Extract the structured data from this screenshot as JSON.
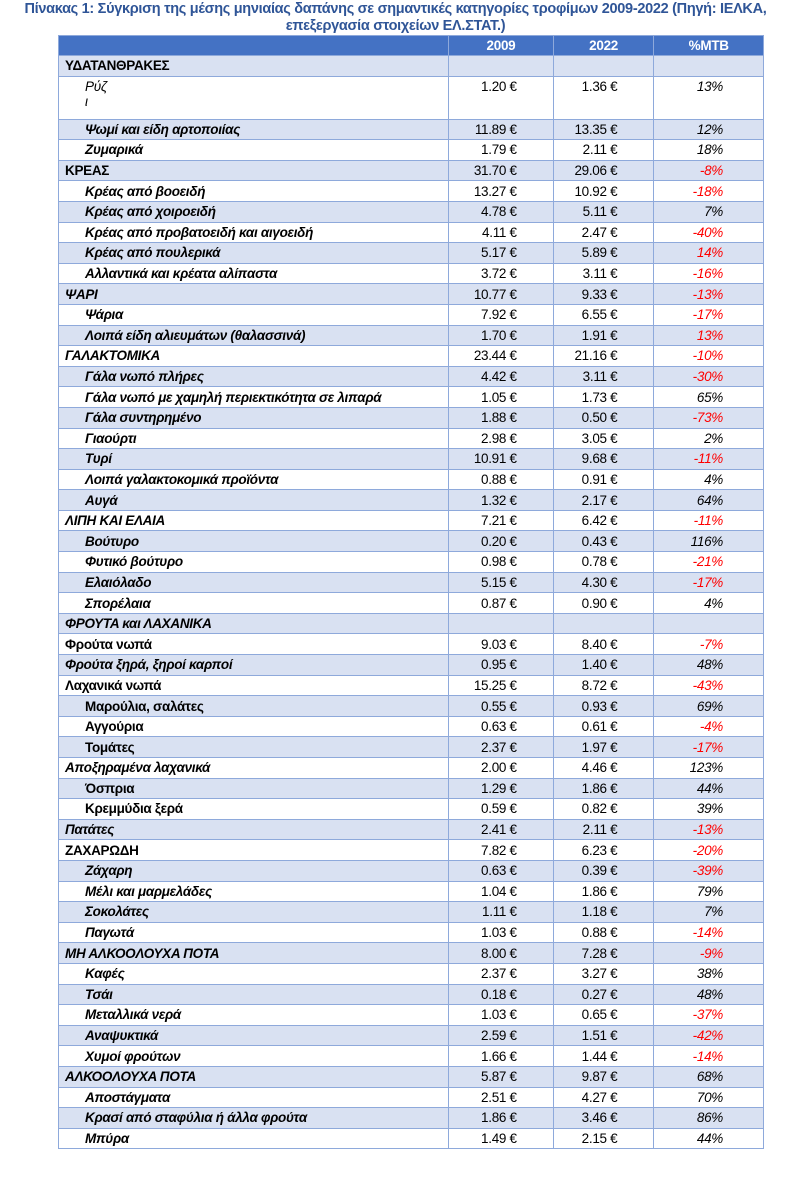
{
  "title": "Πίνακας 1: Σύγκριση της μέσης μηνιαίας δαπάνης σε σημαντικές κατηγορίες τροφίμων 2009-2022 (Πηγή: ΙΕΛΚΑ, επεξεργασία στοιχείων ΕΛ.ΣΤΑΤ.)",
  "colors": {
    "header_bg": "#4472C4",
    "stripe": "#D9E1F2",
    "negative": "#FF0000"
  },
  "headers": [
    "",
    "2009",
    "2022",
    "%ΜΤΒ"
  ],
  "rows": [
    {
      "name": "ΥΔΑΤΑΝΘΡΑΚΕΣ",
      "v2009": "",
      "v2022": "",
      "pct": "",
      "indent": false,
      "italic": false,
      "red": false
    },
    {
      "name": "Ρύζ",
      "extra": "ι",
      "v2009": "1.20 €",
      "v2022": "1.36 €",
      "pct": "13%",
      "indent": true,
      "italic": true,
      "light": true,
      "red": false
    },
    {
      "name": "Ψωμί και είδη αρτοποιίας",
      "v2009": "11.89 €",
      "v2022": "13.35 €",
      "pct": "12%",
      "indent": true,
      "italic": true,
      "red": false
    },
    {
      "name": "Ζυμαρικά",
      "v2009": "1.79 €",
      "v2022": "2.11 €",
      "pct": "18%",
      "indent": true,
      "italic": true,
      "red": false
    },
    {
      "name": "ΚΡΕΑΣ",
      "v2009": "31.70 €",
      "v2022": "29.06 €",
      "pct": "-8%",
      "indent": false,
      "italic": false,
      "red": true
    },
    {
      "name": "Κρέας από βοοειδή",
      "v2009": "13.27 €",
      "v2022": "10.92 €",
      "pct": "-18%",
      "indent": true,
      "italic": true,
      "red": true
    },
    {
      "name": "Κρέας από χοιροειδή",
      "v2009": "4.78 €",
      "v2022": "5.11 €",
      "pct": "7%",
      "indent": true,
      "italic": true,
      "red": false
    },
    {
      "name": "Κρέας από προβατοειδή και αιγοειδή",
      "v2009": "4.11 €",
      "v2022": "2.47 €",
      "pct": "-40%",
      "indent": true,
      "italic": true,
      "red": true
    },
    {
      "name": "Κρέας από πουλερικά",
      "v2009": "5.17 €",
      "v2022": "5.89 €",
      "pct": "14%",
      "indent": true,
      "italic": true,
      "red": true
    },
    {
      "name": "Αλλαντικά και κρέατα αλίπαστα",
      "v2009": "3.72 €",
      "v2022": "3.11 €",
      "pct": "-16%",
      "indent": true,
      "italic": true,
      "red": true
    },
    {
      "name": "ΨΑΡΙ",
      "v2009": "10.77 €",
      "v2022": "9.33 €",
      "pct": "-13%",
      "indent": false,
      "italic": true,
      "red": true
    },
    {
      "name": "Ψάρια",
      "v2009": "7.92 €",
      "v2022": "6.55 €",
      "pct": "-17%",
      "indent": true,
      "italic": true,
      "red": true
    },
    {
      "name": "Λοιπά είδη αλιευμάτων (θαλασσινά)",
      "v2009": "1.70 €",
      "v2022": "1.91 €",
      "pct": "13%",
      "indent": true,
      "italic": true,
      "red": true
    },
    {
      "name": "ΓΑΛΑΚΤΟΜΙΚΑ",
      "v2009": "23.44 €",
      "v2022": "21.16 €",
      "pct": "-10%",
      "indent": false,
      "italic": true,
      "red": true
    },
    {
      "name": "Γάλα νωπό  πλήρες",
      "v2009": "4.42 €",
      "v2022": "3.11 €",
      "pct": "-30%",
      "indent": true,
      "italic": true,
      "red": true
    },
    {
      "name": "Γάλα νωπό  με χαμηλή περιεκτικότητα σε λιπαρά",
      "v2009": "1.05 €",
      "v2022": "1.73 €",
      "pct": "65%",
      "indent": true,
      "italic": true,
      "red": false
    },
    {
      "name": "Γάλα συντηρημένο",
      "v2009": "1.88 €",
      "v2022": "0.50 €",
      "pct": "-73%",
      "indent": true,
      "italic": true,
      "red": true
    },
    {
      "name": "Γιαούρτι",
      "v2009": "2.98 €",
      "v2022": "3.05 €",
      "pct": "2%",
      "indent": true,
      "italic": true,
      "red": false
    },
    {
      "name": "Τυρί",
      "v2009": "10.91 €",
      "v2022": "9.68 €",
      "pct": "-11%",
      "indent": true,
      "italic": true,
      "red": true
    },
    {
      "name": "Λοιπά γαλακτοκομικά προϊόντα",
      "v2009": "0.88 €",
      "v2022": "0.91 €",
      "pct": "4%",
      "indent": true,
      "italic": true,
      "red": false
    },
    {
      "name": "Αυγά",
      "v2009": "1.32 €",
      "v2022": "2.17 €",
      "pct": "64%",
      "indent": true,
      "italic": true,
      "red": false
    },
    {
      "name": "ΛΙΠΗ ΚΑΙ ΕΛΑΙΑ",
      "v2009": "7.21 €",
      "v2022": "6.42 €",
      "pct": "-11%",
      "indent": false,
      "italic": true,
      "red": true
    },
    {
      "name": "Βούτυρο",
      "v2009": "0.20 €",
      "v2022": "0.43 €",
      "pct": "116%",
      "indent": true,
      "italic": true,
      "red": false
    },
    {
      "name": "Φυτικό βούτυρο",
      "v2009": "0.98 €",
      "v2022": "0.78 €",
      "pct": "-21%",
      "indent": true,
      "italic": true,
      "red": true
    },
    {
      "name": "Ελαιόλαδο",
      "v2009": "5.15 €",
      "v2022": "4.30 €",
      "pct": "-17%",
      "indent": true,
      "italic": true,
      "red": true
    },
    {
      "name": "Σπορέλαια",
      "v2009": "0.87 €",
      "v2022": "0.90 €",
      "pct": "4%",
      "indent": true,
      "italic": true,
      "red": false
    },
    {
      "name": "ΦΡΟΥΤΑ και ΛΑΧΑΝΙΚΑ",
      "v2009": "",
      "v2022": "",
      "pct": "",
      "indent": false,
      "italic": true,
      "red": false
    },
    {
      "name": "Φρούτα νωπά",
      "v2009": "9.03 €",
      "v2022": "8.40 €",
      "pct": "-7%",
      "indent": false,
      "italic": false,
      "red": true
    },
    {
      "name": "Φρούτα ξηρά,  ξηροί καρποί",
      "v2009": "0.95 €",
      "v2022": "1.40 €",
      "pct": "48%",
      "indent": false,
      "italic": true,
      "red": false
    },
    {
      "name": "Λαχανικά νωπά",
      "v2009": "15.25 €",
      "v2022": "8.72 €",
      "pct": "-43%",
      "indent": false,
      "italic": false,
      "red": true
    },
    {
      "name": "Μαρούλια, σαλάτες",
      "v2009": "0.55 €",
      "v2022": "0.93 €",
      "pct": "69%",
      "indent": true,
      "italic": false,
      "red": false
    },
    {
      "name": "Αγγούρια",
      "v2009": "0.63 €",
      "v2022": "0.61 €",
      "pct": "-4%",
      "indent": true,
      "italic": false,
      "red": true
    },
    {
      "name": "Τομάτες",
      "v2009": "2.37 €",
      "v2022": "1.97 €",
      "pct": "-17%",
      "indent": true,
      "italic": false,
      "red": true
    },
    {
      "name": "Αποξηραμένα λαχανικά",
      "v2009": "2.00 €",
      "v2022": "4.46 €",
      "pct": "123%",
      "indent": false,
      "italic": true,
      "red": false
    },
    {
      "name": "Όσπρια",
      "v2009": "1.29 €",
      "v2022": "1.86 €",
      "pct": "44%",
      "indent": true,
      "italic": false,
      "red": false
    },
    {
      "name": "Κρεμμύδια ξερά",
      "v2009": "0.59 €",
      "v2022": "0.82 €",
      "pct": "39%",
      "indent": true,
      "italic": false,
      "red": false
    },
    {
      "name": "Πατάτες",
      "v2009": "2.41 €",
      "v2022": "2.11 €",
      "pct": "-13%",
      "indent": false,
      "italic": true,
      "red": true
    },
    {
      "name": "ΖΑΧΑΡΩΔΗ",
      "v2009": "7.82 €",
      "v2022": "6.23 €",
      "pct": "-20%",
      "indent": false,
      "italic": false,
      "red": true
    },
    {
      "name": "Ζάχαρη",
      "v2009": "0.63 €",
      "v2022": "0.39 €",
      "pct": "-39%",
      "indent": true,
      "italic": true,
      "red": true
    },
    {
      "name": "Μέλι και μαρμελάδες",
      "v2009": "1.04 €",
      "v2022": "1.86 €",
      "pct": "79%",
      "indent": true,
      "italic": true,
      "red": false
    },
    {
      "name": "Σοκολάτες",
      "v2009": "1.11 €",
      "v2022": "1.18 €",
      "pct": "7%",
      "indent": true,
      "italic": true,
      "red": false
    },
    {
      "name": "Παγωτά",
      "v2009": "1.03 €",
      "v2022": "0.88 €",
      "pct": "-14%",
      "indent": true,
      "italic": true,
      "red": true
    },
    {
      "name": "ΜΗ ΑΛΚΟΟΛΟΥΧΑ ΠΟΤΑ",
      "v2009": "8.00 €",
      "v2022": "7.28 €",
      "pct": "-9%",
      "indent": false,
      "italic": true,
      "red": true
    },
    {
      "name": "Καφές",
      "v2009": "2.37 €",
      "v2022": "3.27 €",
      "pct": "38%",
      "indent": true,
      "italic": true,
      "red": false
    },
    {
      "name": "Τσάι",
      "v2009": "0.18 €",
      "v2022": "0.27 €",
      "pct": "48%",
      "indent": true,
      "italic": true,
      "red": false
    },
    {
      "name": "Μεταλλικά νερά",
      "v2009": "1.03 €",
      "v2022": "0.65 €",
      "pct": "-37%",
      "indent": true,
      "italic": true,
      "red": true
    },
    {
      "name": "Αναψυκτικά",
      "v2009": "2.59 €",
      "v2022": "1.51 €",
      "pct": "-42%",
      "indent": true,
      "italic": true,
      "red": true
    },
    {
      "name": "Χυμοί φρούτων",
      "v2009": "1.66 €",
      "v2022": "1.44 €",
      "pct": "-14%",
      "indent": true,
      "italic": true,
      "red": true
    },
    {
      "name": "ΑΛΚΟΟΛΟΥΧΑ ΠΟΤΑ",
      "v2009": "5.87 €",
      "v2022": "9.87 €",
      "pct": "68%",
      "indent": false,
      "italic": true,
      "red": false
    },
    {
      "name": "Αποστάγματα",
      "v2009": "2.51 €",
      "v2022": "4.27 €",
      "pct": "70%",
      "indent": true,
      "italic": true,
      "red": false
    },
    {
      "name": "Κρασί από σταφύλια ή άλλα φρούτα",
      "v2009": "1.86 €",
      "v2022": "3.46 €",
      "pct": "86%",
      "indent": true,
      "italic": true,
      "red": false
    },
    {
      "name": "Μπύρα",
      "v2009": "1.49 €",
      "v2022": "2.15 €",
      "pct": "44%",
      "indent": true,
      "italic": true,
      "red": false
    }
  ]
}
